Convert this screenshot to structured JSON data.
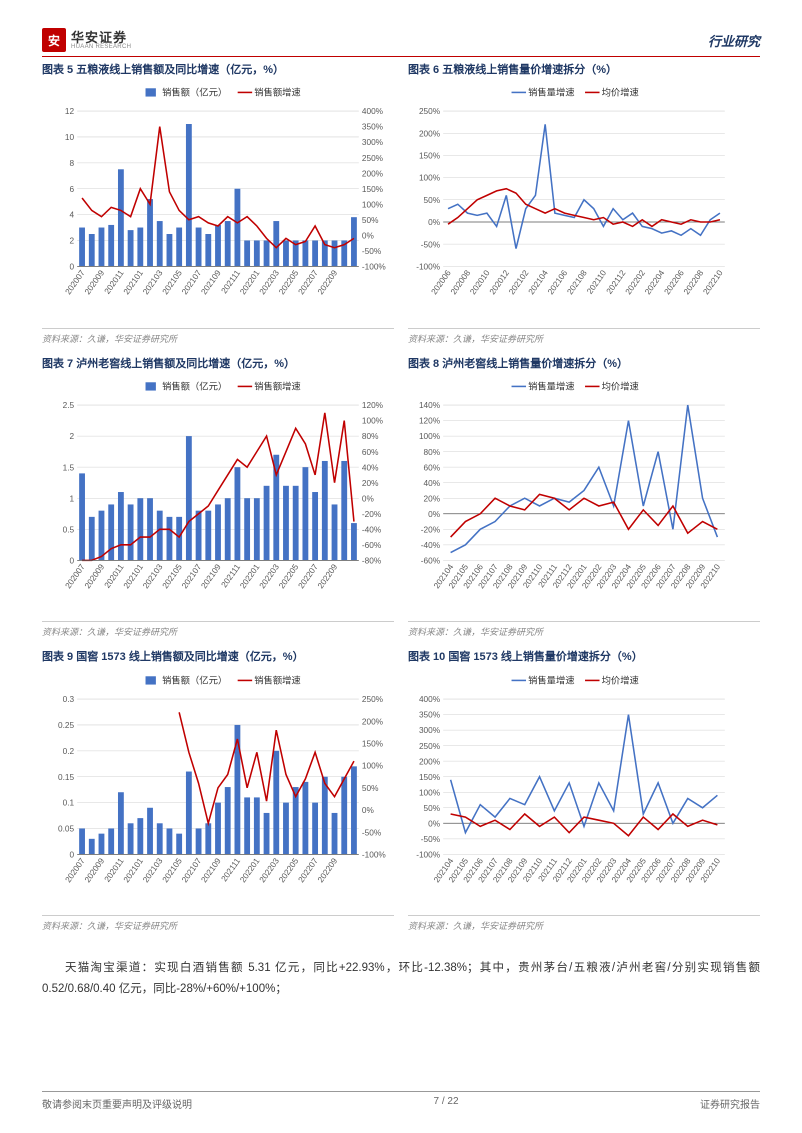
{
  "header": {
    "logo_cn": "华安证券",
    "logo_en": "HUAAN RESEARCH",
    "right": "行业研究"
  },
  "charts": [
    {
      "id": "c5",
      "title": "图表 5 五粮液线上销售额及同比增速（亿元，%）",
      "source": "资料来源：久谦，华安证券研究所",
      "type": "combo",
      "legend": [
        {
          "label": "销售额（亿元）",
          "color": "#4472c4",
          "shape": "bar"
        },
        {
          "label": "销售额增速",
          "color": "#c00000",
          "shape": "line"
        }
      ],
      "x": [
        "202007",
        "202009",
        "202011",
        "202101",
        "202103",
        "202105",
        "202107",
        "202109",
        "202111",
        "202201",
        "202203",
        "202205",
        "202207",
        "202209"
      ],
      "xPositionsCount": 29,
      "yLeft": {
        "min": 0,
        "max": 12,
        "step": 2
      },
      "yRight": {
        "min": -100,
        "max": 400,
        "step": 50
      },
      "bars": [
        3.0,
        2.5,
        3.0,
        3.2,
        7.5,
        2.8,
        3.0,
        5.2,
        3.5,
        2.5,
        3.0,
        11.0,
        3.0,
        2.5,
        3.2,
        3.5,
        6.0,
        2.0,
        2.0,
        2.0,
        3.5,
        2.0,
        2.0,
        2.0,
        2.0,
        2.0,
        2.0,
        2.0,
        3.8
      ],
      "line": [
        120,
        80,
        60,
        90,
        80,
        60,
        150,
        100,
        350,
        140,
        80,
        50,
        60,
        40,
        30,
        60,
        40,
        60,
        30,
        -10,
        -40,
        -10,
        -30,
        -20,
        30,
        -30,
        -40,
        -30,
        -10
      ]
    },
    {
      "id": "c6",
      "title": "图表 6 五粮液线上销售量价增速拆分（%）",
      "source": "资料来源：久谦，华安证券研究所",
      "type": "line2",
      "legend": [
        {
          "label": "销售量增速",
          "color": "#4472c4",
          "shape": "line"
        },
        {
          "label": "均价增速",
          "color": "#c00000",
          "shape": "line"
        }
      ],
      "x": [
        "202006",
        "202008",
        "202010",
        "202012",
        "202102",
        "202104",
        "202106",
        "202108",
        "202110",
        "202112",
        "202202",
        "202204",
        "202206",
        "202208",
        "202210"
      ],
      "xPositionsCount": 29,
      "y": {
        "min": -100,
        "max": 250,
        "step": 50
      },
      "line1": [
        30,
        40,
        20,
        15,
        20,
        -10,
        60,
        -60,
        30,
        60,
        220,
        20,
        15,
        10,
        50,
        30,
        -10,
        30,
        5,
        20,
        -10,
        -15,
        -25,
        -20,
        -30,
        -15,
        -30,
        5,
        20
      ],
      "line2": [
        -5,
        10,
        30,
        50,
        60,
        70,
        75,
        65,
        40,
        30,
        20,
        30,
        20,
        15,
        10,
        5,
        10,
        -5,
        0,
        -10,
        5,
        -10,
        5,
        0,
        -5,
        5,
        0,
        0,
        5
      ]
    },
    {
      "id": "c7",
      "title": "图表 7 泸州老窖线上销售额及同比增速（亿元，%）",
      "source": "资料来源：久谦，华安证券研究所",
      "type": "combo",
      "legend": [
        {
          "label": "销售额（亿元）",
          "color": "#4472c4",
          "shape": "bar"
        },
        {
          "label": "销售额增速",
          "color": "#c00000",
          "shape": "line"
        }
      ],
      "x": [
        "202007",
        "202009",
        "202011",
        "202101",
        "202103",
        "202105",
        "202107",
        "202109",
        "202111",
        "202201",
        "202203",
        "202205",
        "202207",
        "202209"
      ],
      "xPositionsCount": 29,
      "yLeft": {
        "min": 0,
        "max": 2.5,
        "step": 0.5
      },
      "yRight": {
        "min": -80,
        "max": 120,
        "step": 20
      },
      "bars": [
        1.4,
        0.7,
        0.8,
        0.9,
        1.1,
        0.9,
        1.0,
        1.0,
        0.8,
        0.7,
        0.7,
        2.0,
        0.8,
        0.8,
        0.9,
        1.0,
        1.5,
        1.0,
        1.0,
        1.2,
        1.7,
        1.2,
        1.2,
        1.5,
        1.1,
        1.6,
        0.9,
        1.6,
        0.6
      ],
      "line": [
        -80,
        -80,
        -75,
        -65,
        -60,
        -60,
        -50,
        -50,
        -40,
        -40,
        -50,
        -30,
        -20,
        -10,
        10,
        30,
        50,
        40,
        60,
        80,
        30,
        60,
        90,
        70,
        30,
        110,
        20,
        100,
        -30
      ]
    },
    {
      "id": "c8",
      "title": "图表 8 泸州老窖线上销售量价增速拆分（%）",
      "source": "资料来源：久谦，华安证券研究所",
      "type": "line2",
      "legend": [
        {
          "label": "销售量增速",
          "color": "#4472c4",
          "shape": "line"
        },
        {
          "label": "均价增速",
          "color": "#c00000",
          "shape": "line"
        }
      ],
      "x": [
        "202104",
        "202105",
        "202106",
        "202107",
        "202108",
        "202109",
        "202110",
        "202111",
        "202112",
        "202201",
        "202202",
        "202203",
        "202204",
        "202205",
        "202206",
        "202207",
        "202208",
        "202209",
        "202210"
      ],
      "xPositionsCount": 19,
      "y": {
        "min": -60,
        "max": 140,
        "step": 20
      },
      "line1": [
        -50,
        -40,
        -20,
        -10,
        10,
        20,
        10,
        20,
        15,
        30,
        60,
        10,
        120,
        10,
        80,
        -20,
        140,
        20,
        -30
      ],
      "line2": [
        -30,
        -10,
        0,
        20,
        10,
        5,
        25,
        20,
        5,
        20,
        10,
        15,
        -20,
        5,
        -15,
        10,
        -25,
        -10,
        -20
      ]
    },
    {
      "id": "c9",
      "title": "图表 9 国窖 1573 线上销售额及同比增速（亿元，%）",
      "source": "资料来源：久谦，华安证券研究所",
      "type": "combo",
      "legend": [
        {
          "label": "销售额（亿元）",
          "color": "#4472c4",
          "shape": "bar"
        },
        {
          "label": "销售额增速",
          "color": "#c00000",
          "shape": "line"
        }
      ],
      "x": [
        "202007",
        "202009",
        "202011",
        "202101",
        "202103",
        "202105",
        "202107",
        "202109",
        "202111",
        "202201",
        "202203",
        "202205",
        "202207",
        "202209"
      ],
      "xPositionsCount": 29,
      "yLeft": {
        "min": 0,
        "max": 0.3,
        "step": 0.05
      },
      "yRight": {
        "min": -100,
        "max": 250,
        "step": 50
      },
      "bars": [
        0.05,
        0.03,
        0.04,
        0.05,
        0.12,
        0.06,
        0.07,
        0.09,
        0.06,
        0.05,
        0.04,
        0.16,
        0.05,
        0.06,
        0.1,
        0.13,
        0.25,
        0.11,
        0.11,
        0.08,
        0.2,
        0.1,
        0.13,
        0.14,
        0.1,
        0.15,
        0.08,
        0.15,
        0.17
      ],
      "line": [
        null,
        null,
        null,
        null,
        null,
        null,
        null,
        null,
        null,
        null,
        220,
        130,
        60,
        -30,
        50,
        80,
        160,
        50,
        130,
        20,
        180,
        80,
        30,
        70,
        130,
        60,
        30,
        70,
        110
      ]
    },
    {
      "id": "c10",
      "title": "图表 10 国窖 1573 线上销售量价增速拆分（%）",
      "source": "资料来源：久谦，华安证券研究所",
      "type": "line2",
      "legend": [
        {
          "label": "销售量增速",
          "color": "#4472c4",
          "shape": "line"
        },
        {
          "label": "均价增速",
          "color": "#c00000",
          "shape": "line"
        }
      ],
      "x": [
        "202104",
        "202105",
        "202106",
        "202107",
        "202108",
        "202109",
        "202110",
        "202111",
        "202112",
        "202201",
        "202202",
        "202203",
        "202204",
        "202205",
        "202206",
        "202207",
        "202208",
        "202209",
        "202210"
      ],
      "xPositionsCount": 19,
      "y": {
        "min": -100,
        "max": 400,
        "step": 50
      },
      "line1": [
        140,
        -30,
        60,
        20,
        80,
        60,
        150,
        40,
        130,
        -10,
        130,
        40,
        350,
        30,
        130,
        0,
        80,
        50,
        90
      ],
      "line2": [
        30,
        20,
        -10,
        10,
        -20,
        30,
        -10,
        20,
        -30,
        20,
        10,
        0,
        -40,
        20,
        -20,
        30,
        -10,
        10,
        -5
      ]
    }
  ],
  "bodyText": "天猫淘宝渠道：实现白酒销售额 5.31 亿元，同比+22.93%，环比-12.38%；其中，贵州茅台/五粮液/泸州老窖/分别实现销售额 0.52/0.68/0.40 亿元，同比-28%/+60%/+100%；",
  "footer": {
    "left": "敬请参阅末页重要声明及评级说明",
    "center": "7 / 22",
    "right": "证券研究报告"
  },
  "style": {
    "barColor": "#4472c4",
    "lineColor1": "#4472c4",
    "lineColor2": "#c00000",
    "gridColor": "#d0d0d0",
    "axisColor": "#595959",
    "tickFont": 8,
    "legendFont": 9
  }
}
